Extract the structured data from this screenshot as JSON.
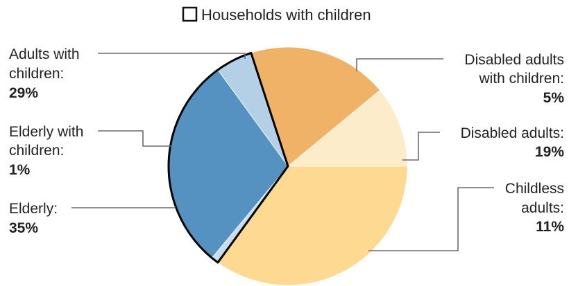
{
  "chart_data": {
    "type": "pie",
    "title": "",
    "legend": {
      "label": "Households with children",
      "placement": "top",
      "swatch": "outline"
    },
    "slices": [
      {
        "name": "Disabled adults with children",
        "line1": "Disabled adults",
        "line2": "with children:",
        "value": 5,
        "pct_label": "5%",
        "color": "#b3d0e6",
        "children": true
      },
      {
        "name": "Disabled adults",
        "line1": "Disabled adults:",
        "line2": "",
        "value": 19,
        "pct_label": "19%",
        "color": "#f0b266",
        "children": false
      },
      {
        "name": "Childless adults",
        "line1": "Childless",
        "line2": "adults:",
        "value": 11,
        "pct_label": "11%",
        "color": "#fdecc9",
        "children": false
      },
      {
        "name": "Elderly",
        "line1": "Elderly:",
        "line2": "",
        "value": 35,
        "pct_label": "35%",
        "color": "#fdd991",
        "children": false
      },
      {
        "name": "Elderly with children",
        "line1": "Elderly with",
        "line2": "children:",
        "value": 1,
        "pct_label": "1%",
        "color": "#c9dcec",
        "children": true
      },
      {
        "name": "Adults with children",
        "line1": "Adults with",
        "line2": "children:",
        "value": 29,
        "pct_label": "29%",
        "color": "#5592c1",
        "children": true
      }
    ]
  }
}
